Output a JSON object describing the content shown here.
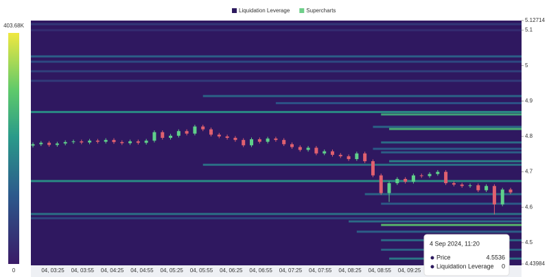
{
  "chart_data": {
    "type": "candlestick",
    "series": [
      {
        "name": "Liquidation Leverage",
        "color": "#2d1a5e"
      },
      {
        "name": "Supercharts",
        "color": "#6fcf8a"
      }
    ],
    "up_color": "#5fd08a",
    "down_color": "#e0606f",
    "categories": [
      "04, 03:25",
      "04, 03:55",
      "04, 04:25",
      "04, 04:55",
      "04, 05:25",
      "04, 05:55",
      "04, 06:25",
      "04, 06:55",
      "04, 07:25",
      "04, 07:55",
      "04, 08:25",
      "04, 08:55",
      "04, 09:25"
    ],
    "ylim": [
      4.43984,
      5.12714
    ],
    "yticks": [
      5.12714,
      5.1,
      5,
      4.9,
      4.8,
      4.7,
      4.6,
      4.5,
      4.43984
    ],
    "open": [
      4.774,
      4.778,
      4.782,
      4.776,
      4.78,
      4.784,
      4.786,
      4.783,
      4.788,
      4.785,
      4.79,
      4.784,
      4.781,
      4.786,
      4.782,
      4.788,
      4.812,
      4.796,
      4.802,
      4.815,
      4.808,
      4.828,
      4.82,
      4.805,
      4.8,
      4.796,
      4.79,
      4.775,
      4.792,
      4.785,
      4.794,
      4.79,
      4.778,
      4.77,
      4.762,
      4.768,
      4.752,
      4.758,
      4.748,
      4.744,
      4.736,
      4.752,
      4.73,
      4.69,
      4.64,
      4.668,
      4.68,
      4.672,
      4.69,
      4.688,
      4.694,
      4.7,
      4.668,
      4.664,
      4.66,
      4.662,
      4.648,
      4.66,
      4.608,
      4.65
    ],
    "high": [
      4.783,
      4.787,
      4.787,
      4.785,
      4.789,
      4.791,
      4.791,
      4.793,
      4.793,
      4.795,
      4.795,
      4.789,
      4.791,
      4.791,
      4.793,
      4.817,
      4.817,
      4.807,
      4.82,
      4.82,
      4.833,
      4.833,
      4.825,
      4.81,
      4.805,
      4.801,
      4.795,
      4.797,
      4.797,
      4.799,
      4.799,
      4.795,
      4.783,
      4.775,
      4.773,
      4.773,
      4.763,
      4.763,
      4.753,
      4.749,
      4.757,
      4.757,
      4.735,
      4.695,
      4.673,
      4.685,
      4.685,
      4.695,
      4.695,
      4.699,
      4.705,
      4.705,
      4.673,
      4.669,
      4.667,
      4.667,
      4.665,
      4.665,
      4.655,
      4.655
    ],
    "low": [
      4.769,
      4.773,
      4.771,
      4.771,
      4.775,
      4.779,
      4.778,
      4.778,
      4.78,
      4.78,
      4.779,
      4.776,
      4.776,
      4.777,
      4.777,
      4.783,
      4.791,
      4.791,
      4.797,
      4.803,
      4.803,
      4.815,
      4.8,
      4.795,
      4.791,
      4.785,
      4.77,
      4.77,
      4.78,
      4.78,
      4.785,
      4.773,
      4.765,
      4.757,
      4.757,
      4.747,
      4.747,
      4.743,
      4.739,
      4.731,
      4.731,
      4.725,
      4.685,
      4.635,
      4.615,
      4.663,
      4.667,
      4.667,
      4.683,
      4.683,
      4.689,
      4.663,
      4.659,
      4.655,
      4.655,
      4.643,
      4.643,
      4.58,
      4.603,
      4.637
    ],
    "close": [
      4.778,
      4.782,
      4.776,
      4.78,
      4.784,
      4.786,
      4.783,
      4.788,
      4.785,
      4.79,
      4.784,
      4.781,
      4.786,
      4.782,
      4.788,
      4.812,
      4.796,
      4.802,
      4.815,
      4.808,
      4.828,
      4.82,
      4.805,
      4.8,
      4.796,
      4.79,
      4.775,
      4.792,
      4.785,
      4.794,
      4.79,
      4.778,
      4.77,
      4.762,
      4.768,
      4.752,
      4.758,
      4.748,
      4.744,
      4.736,
      4.752,
      4.73,
      4.69,
      4.64,
      4.668,
      4.68,
      4.672,
      4.69,
      4.688,
      4.694,
      4.7,
      4.668,
      4.664,
      4.66,
      4.662,
      4.648,
      4.66,
      4.608,
      4.65,
      4.642
    ],
    "levels": [
      {
        "price": 5.117,
        "start": 0,
        "value": 60000
      },
      {
        "price": 5.1,
        "start": 0,
        "value": 40000
      },
      {
        "price": 5.026,
        "start": 0,
        "value": 140000
      },
      {
        "price": 5.011,
        "start": 0,
        "value": 100000
      },
      {
        "price": 4.984,
        "start": 0,
        "value": 80000
      },
      {
        "price": 4.957,
        "start": 0,
        "value": 70000
      },
      {
        "price": 4.914,
        "start": 21,
        "value": 150000
      },
      {
        "price": 4.894,
        "start": 30,
        "value": 120000
      },
      {
        "price": 4.869,
        "start": 0,
        "value": 220000
      },
      {
        "price": 4.862,
        "start": 43,
        "value": 260000
      },
      {
        "price": 4.827,
        "start": 42,
        "value": 150000
      },
      {
        "price": 4.821,
        "start": 44,
        "value": 280000
      },
      {
        "price": 4.783,
        "start": 43,
        "value": 160000
      },
      {
        "price": 4.765,
        "start": 42,
        "value": 130000
      },
      {
        "price": 4.755,
        "start": 43,
        "value": 140000
      },
      {
        "price": 4.73,
        "start": 44,
        "value": 200000
      },
      {
        "price": 4.72,
        "start": 21,
        "value": 170000
      },
      {
        "price": 4.674,
        "start": 0,
        "value": 220000
      },
      {
        "price": 4.637,
        "start": 41,
        "value": 150000
      },
      {
        "price": 4.61,
        "start": 43,
        "value": 130000
      },
      {
        "price": 4.581,
        "start": 0,
        "value": 170000
      },
      {
        "price": 4.569,
        "start": 0,
        "value": 90000
      },
      {
        "price": 4.56,
        "start": 39,
        "value": 160000
      },
      {
        "price": 4.55,
        "start": 43,
        "value": 300000
      },
      {
        "price": 4.531,
        "start": 40,
        "value": 140000
      },
      {
        "price": 4.507,
        "start": 43,
        "value": 160000
      },
      {
        "price": 4.48,
        "start": 43,
        "value": 150000
      },
      {
        "price": 4.455,
        "start": 44,
        "value": 180000
      }
    ],
    "colorbar": {
      "lim": [
        0,
        403680
      ],
      "ticks": [
        {
          "value": 403680,
          "label": "403.68K"
        },
        0
      ]
    }
  },
  "tooltip": {
    "title": "4 Sep 2024, 11:20",
    "rows": [
      {
        "label": "Price",
        "value": 4.5536
      },
      {
        "label": "Liquidation Leverage",
        "value": 0
      }
    ]
  }
}
